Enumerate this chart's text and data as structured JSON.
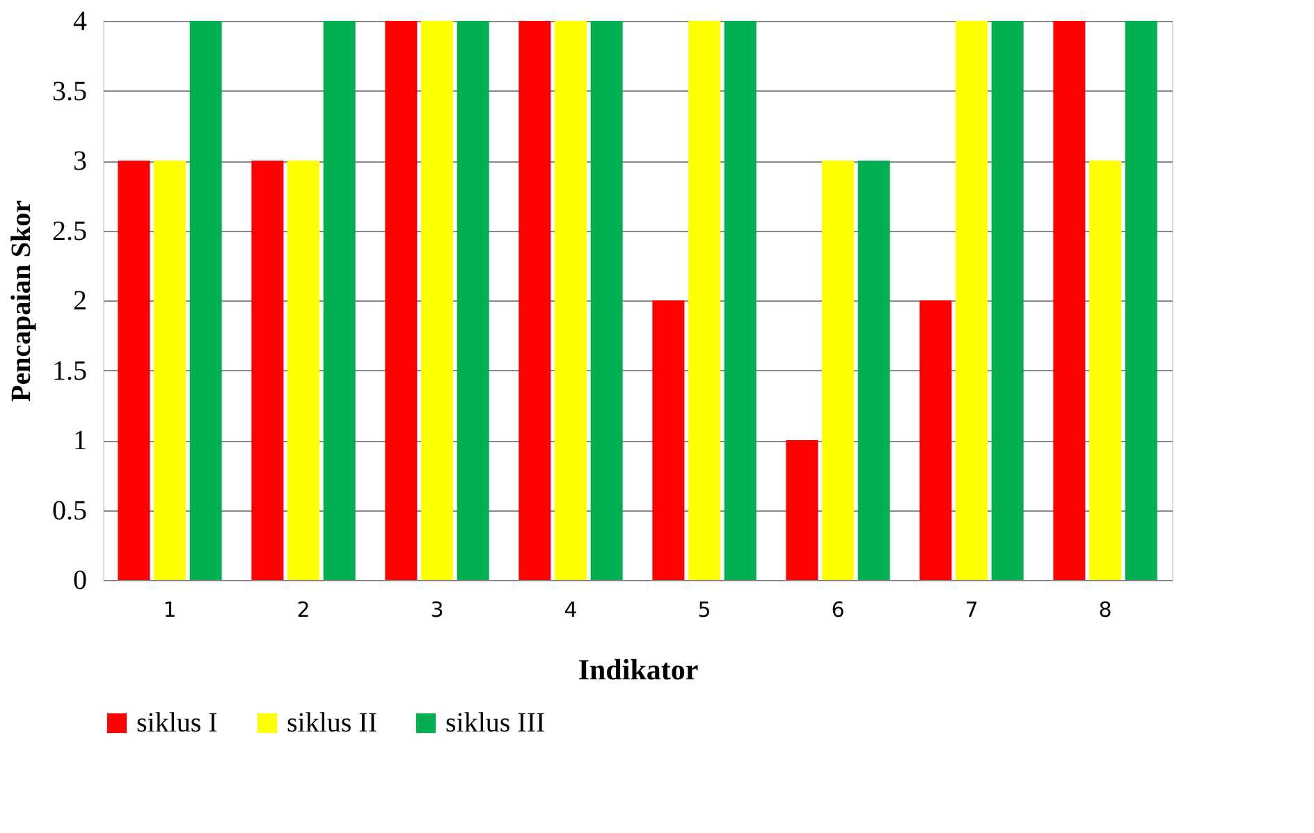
{
  "chart_data": {
    "type": "bar",
    "xlabel": "Indikator",
    "ylabel": "Pencapaian Skor",
    "categories": [
      "1",
      "2",
      "3",
      "4",
      "5",
      "6",
      "7",
      "8"
    ],
    "series": [
      {
        "name": "siklus I",
        "color": "#ff0000",
        "values": [
          3,
          3,
          4,
          4,
          2,
          1,
          2,
          4
        ]
      },
      {
        "name": "siklus II",
        "color": "#ffff00",
        "values": [
          3,
          3,
          4,
          4,
          4,
          3,
          4,
          3
        ]
      },
      {
        "name": "siklus III",
        "color": "#00b050",
        "values": [
          4,
          4,
          4,
          4,
          4,
          3,
          4,
          4
        ]
      }
    ],
    "ylim": [
      0,
      4
    ],
    "yticks": [
      0,
      0.5,
      1,
      1.5,
      2,
      2.5,
      3,
      3.5,
      4
    ],
    "grid": "y",
    "legend": "bottom"
  }
}
